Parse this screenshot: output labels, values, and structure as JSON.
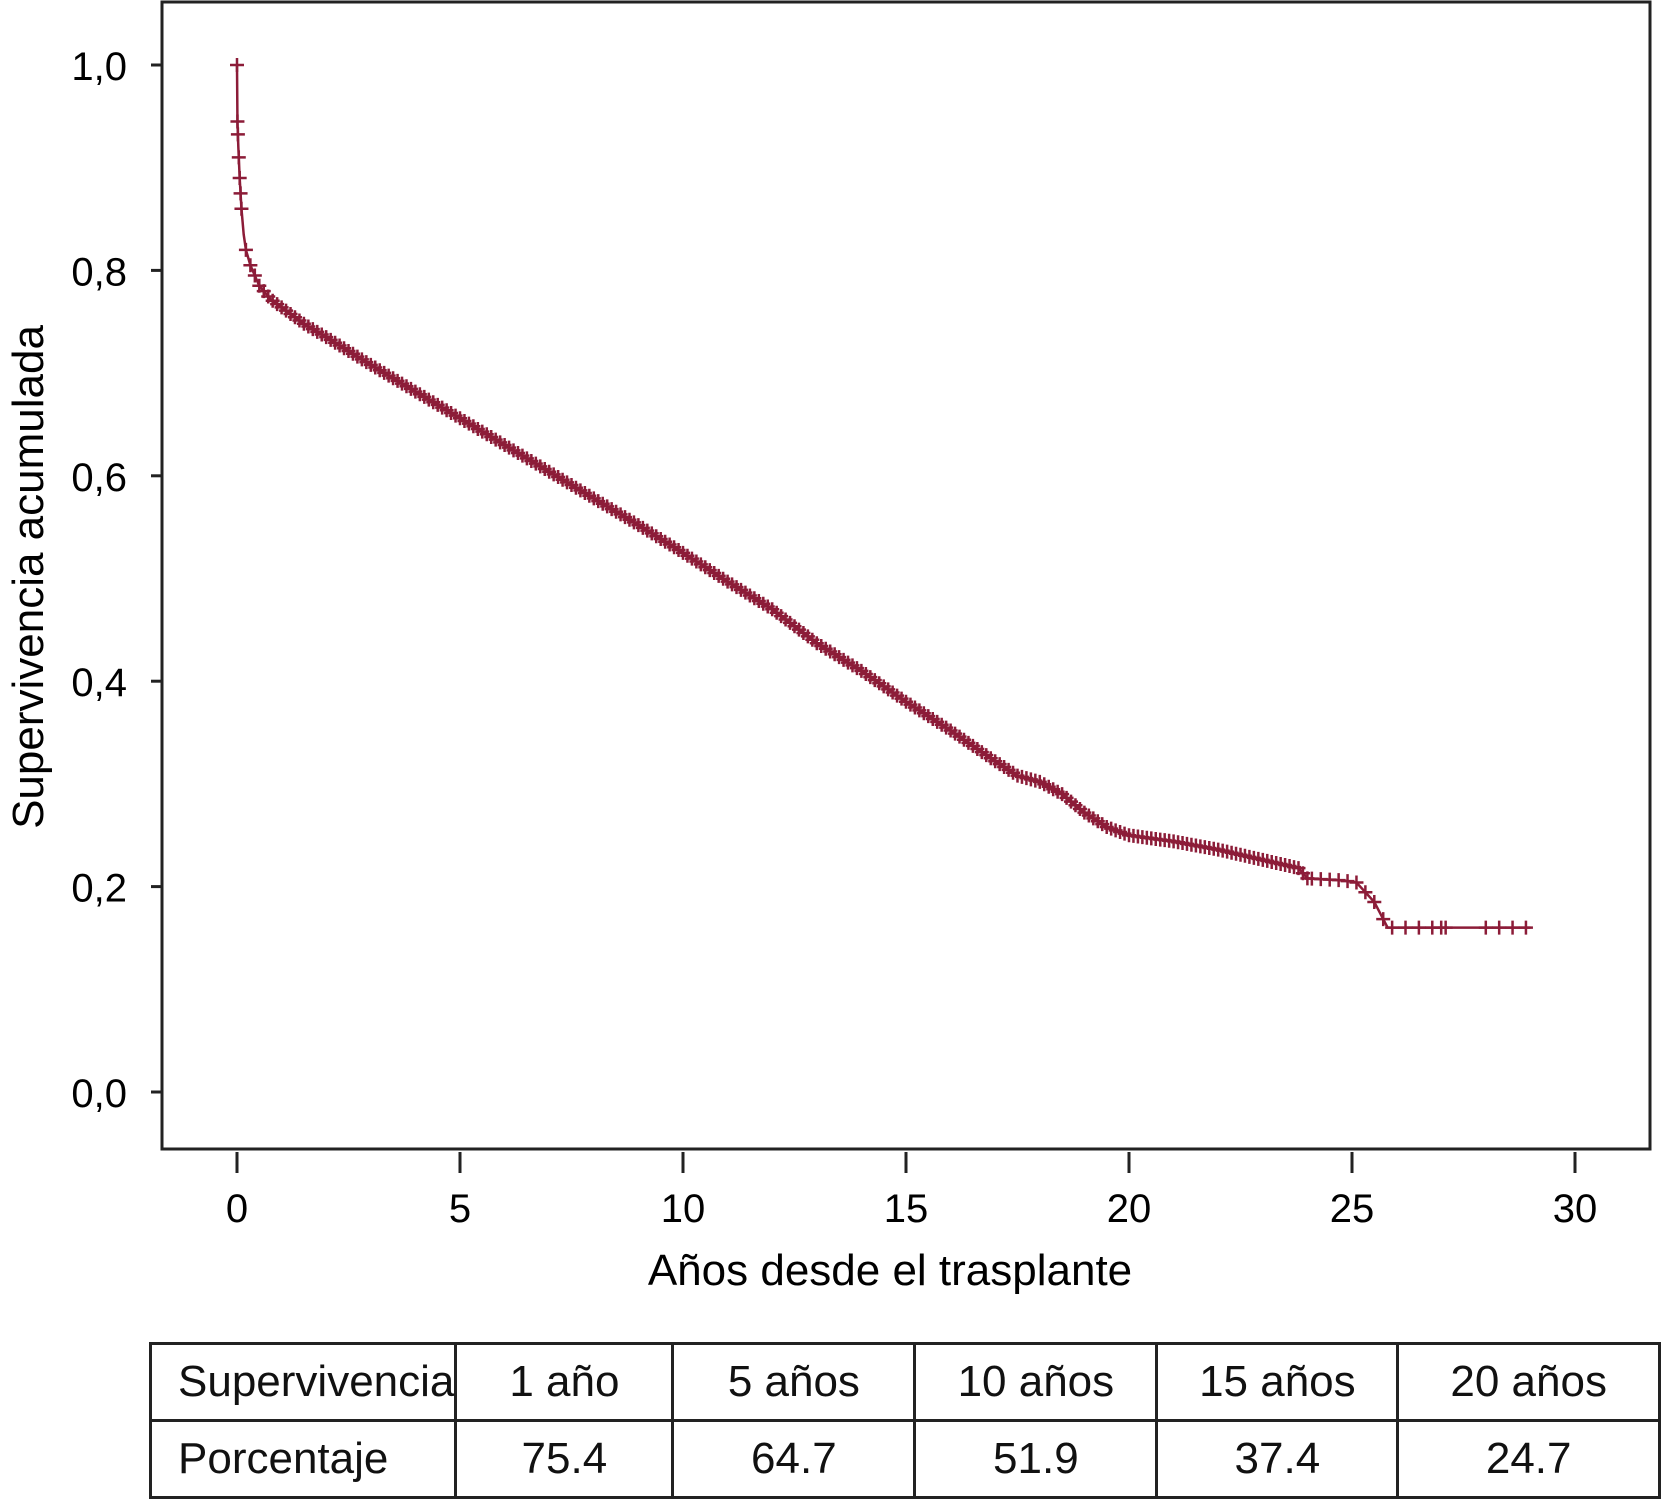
{
  "chart_data": {
    "type": "line",
    "subtype": "kaplan-meier",
    "title": "",
    "xlabel": "Años desde el trasplante",
    "ylabel": "Supervivencia acumulada",
    "xlim": [
      -1.7,
      31.7
    ],
    "ylim": [
      -0.11,
      1.06
    ],
    "xticks": [
      0,
      5,
      10,
      15,
      20,
      25,
      30
    ],
    "xtick_labels": [
      "0",
      "5",
      "10",
      "15",
      "20",
      "25",
      "30"
    ],
    "yticks": [
      0,
      0.2,
      0.4,
      0.6,
      0.8,
      1.0
    ],
    "ytick_labels": [
      "0,0",
      "0,2",
      "0,4",
      "0,6",
      "0,8",
      "1,0"
    ],
    "grid": false,
    "series_color": "#8c1c38",
    "series": [
      {
        "name": "Supervivencia",
        "x": [
          0,
          0.01,
          0.03,
          0.06,
          0.1,
          0.15,
          0.2,
          0.3,
          0.5,
          0.75,
          1,
          1.5,
          2,
          3,
          4,
          5,
          6,
          7,
          8,
          9,
          10,
          11,
          12,
          13,
          14,
          15,
          16,
          17,
          17.5,
          18,
          18.5,
          19,
          19.5,
          20,
          21,
          22,
          23,
          23.8,
          24,
          24.8,
          25.1,
          25.5,
          25.8,
          29
        ],
        "y": [
          1.0,
          0.945,
          0.92,
          0.89,
          0.86,
          0.835,
          0.82,
          0.805,
          0.785,
          0.772,
          0.764,
          0.748,
          0.735,
          0.708,
          0.682,
          0.656,
          0.63,
          0.604,
          0.578,
          0.552,
          0.525,
          0.497,
          0.47,
          0.437,
          0.41,
          0.38,
          0.352,
          0.322,
          0.308,
          0.302,
          0.29,
          0.272,
          0.258,
          0.25,
          0.244,
          0.236,
          0.226,
          0.218,
          0.208,
          0.206,
          0.204,
          0.185,
          0.16,
          0.16
        ]
      }
    ],
    "censor_mark_interval_years": 0.1,
    "censor_marks_until": 24.2,
    "tail_censor_times": [
      24.3,
      24.5,
      24.7,
      24.9,
      25.1,
      25.3,
      25.5,
      25.7,
      25.9,
      26.2,
      26.5,
      26.8,
      27.0,
      27.1,
      28.0,
      28.3,
      28.6,
      28.9
    ]
  },
  "table": {
    "header": [
      "Supervivencia",
      "1 año",
      "5 años",
      "10 años",
      "15 años",
      "20 años"
    ],
    "row": [
      "Porcentaje",
      "75.4",
      "64.7",
      "51.9",
      "37.4",
      "24.7"
    ]
  }
}
